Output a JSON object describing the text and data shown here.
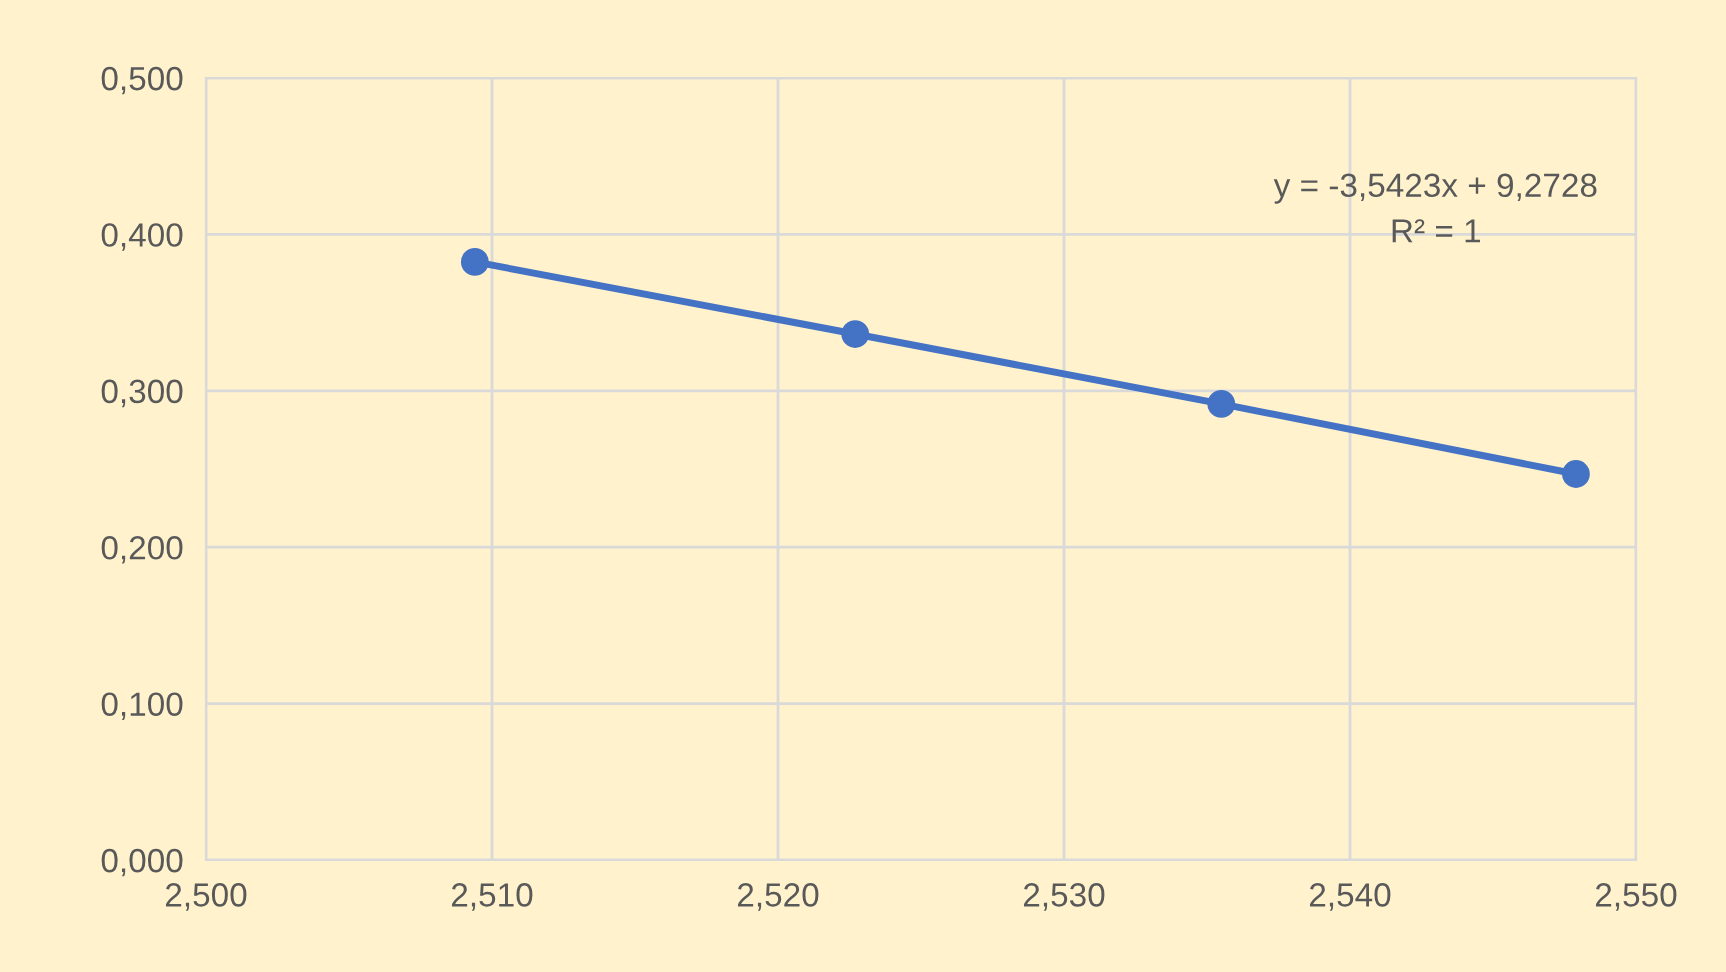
{
  "chart_data": {
    "type": "line",
    "x": [
      2.5094,
      2.5227,
      2.5355,
      2.5479
    ],
    "series": [
      {
        "color": "#4472c4",
        "values": [
          0.3824,
          0.3363,
          0.2916,
          0.2468
        ]
      }
    ],
    "marker": "circle",
    "line_style": "solid",
    "grid": true,
    "legend": false,
    "xlim": [
      2.5,
      2.55
    ],
    "xticks": [
      {
        "value": 2.5,
        "label": "2,500"
      },
      {
        "value": 2.51,
        "label": "2,510"
      },
      {
        "value": 2.52,
        "label": "2,520"
      },
      {
        "value": 2.53,
        "label": "2,530"
      },
      {
        "value": 2.54,
        "label": "2,540"
      },
      {
        "value": 2.55,
        "label": "2,550"
      }
    ],
    "ylim": [
      0,
      0.5
    ],
    "yticks": [
      {
        "value": 0,
        "label": "0,000"
      },
      {
        "value": 0.1,
        "label": "0,100"
      },
      {
        "value": 0.2,
        "label": "0,200"
      },
      {
        "value": 0.3,
        "label": "0,300"
      },
      {
        "value": 0.4,
        "label": "0,400"
      },
      {
        "value": 0.5,
        "label": "0,500"
      }
    ],
    "annotations": [
      "y = -3,5423x + 9,2728\nR² = 1"
    ]
  }
}
